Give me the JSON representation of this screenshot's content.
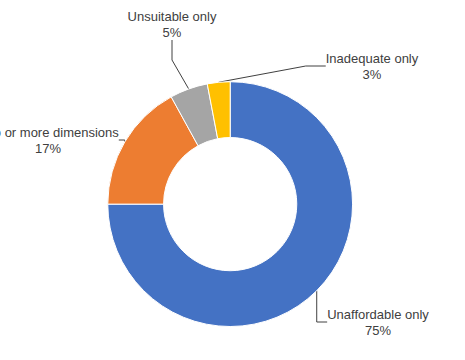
{
  "chart_data": {
    "type": "pie",
    "categories": [
      "Unaffordable only",
      "Two or more dimensions",
      "Unsuitable only",
      "Inadequate only"
    ],
    "values": [
      75,
      17,
      5,
      3
    ],
    "value_labels": [
      "75%",
      "17%",
      "5%",
      "3%"
    ],
    "colors": [
      "#4472c4",
      "#ed7d31",
      "#a5a5a5",
      "#ffc000"
    ],
    "data_labels": true
  }
}
